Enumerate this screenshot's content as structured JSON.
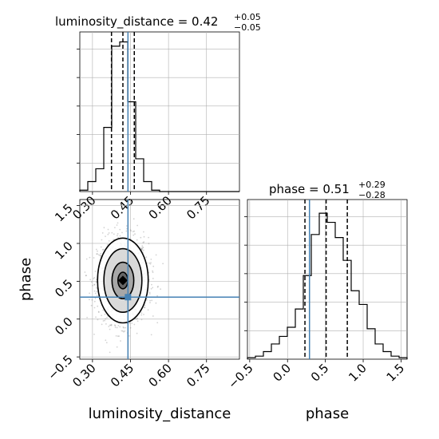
{
  "chart_data": {
    "type": "corner",
    "colors": {
      "truth": "#4682b4",
      "hist": "#000000",
      "grid": "#b0b0b0",
      "samples": "#808080"
    },
    "grid": true,
    "parameters": [
      {
        "name": "luminosity_distance",
        "title_main": "luminosity_distance = 0.42",
        "title_plus": "+0.05",
        "title_minus": "−0.05",
        "truth": 0.44,
        "quantiles": [
          0.375,
          0.42,
          0.465
        ],
        "xlim": [
          0.25,
          0.88
        ],
        "ticks": [
          0.3,
          0.45,
          0.6,
          0.75
        ],
        "tick_labels": [
          "0.30",
          "0.45",
          "0.60",
          "0.75"
        ],
        "hist": {
          "edges": [
            0.25,
            0.2815,
            0.313,
            0.3445,
            0.376,
            0.4075,
            0.439,
            0.4705,
            0.502,
            0.5335,
            0.565,
            0.5965,
            0.628,
            0.6595,
            0.691,
            0.7225,
            0.754,
            0.7855,
            0.817,
            0.8485,
            0.88
          ],
          "counts": [
            1,
            7,
            16,
            45,
            102,
            105,
            63,
            23,
            7,
            1,
            0,
            0,
            0,
            0,
            0,
            0,
            0,
            0,
            0,
            0
          ],
          "ymax": 112
        }
      },
      {
        "name": "phase",
        "title_main": "phase = 0.51",
        "title_plus": "+0.29",
        "title_minus": "−0.28",
        "truth": 0.29,
        "quantiles": [
          0.23,
          0.51,
          0.79
        ],
        "xlim": [
          -0.53,
          1.58
        ],
        "ylim": [
          -0.53,
          1.58
        ],
        "ticks": [
          -0.5,
          0.0,
          0.5,
          1.0,
          1.5
        ],
        "tick_labels": [
          "−0.5",
          "0.0",
          "0.5",
          "1.0",
          "1.5"
        ],
        "hist": {
          "edges": [
            -0.53,
            -0.4245,
            -0.319,
            -0.2135,
            -0.108,
            -0.0025,
            0.103,
            0.2085,
            0.314,
            0.4195,
            0.525,
            0.6305,
            0.736,
            0.8415,
            0.947,
            1.0525,
            1.158,
            1.2635,
            1.369,
            1.4745,
            1.58
          ],
          "counts": [
            1,
            2,
            5,
            10,
            15,
            21,
            33,
            55,
            82,
            96,
            90,
            80,
            65,
            45,
            36,
            20,
            10,
            5,
            2,
            1
          ],
          "ymax": 105
        }
      }
    ],
    "joint": {
      "x": "luminosity_distance",
      "y": "phase",
      "center": [
        0.42,
        0.51
      ],
      "sd": [
        0.05,
        0.28
      ],
      "contour_levels": [
        0.39,
        0.86,
        1.5,
        2.0
      ]
    }
  }
}
